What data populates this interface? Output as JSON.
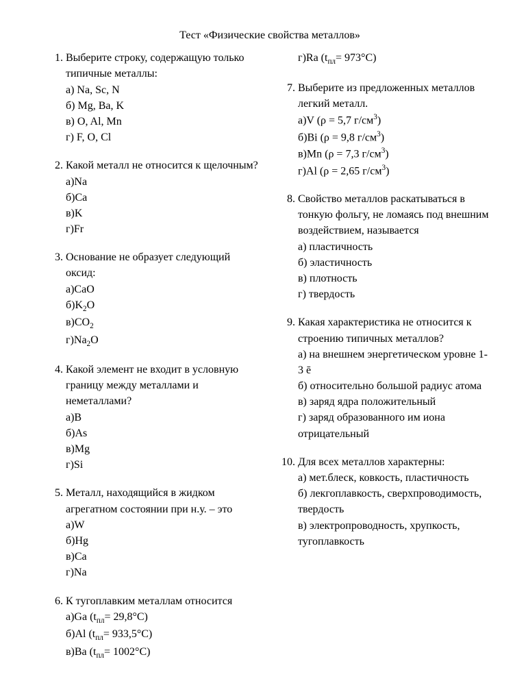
{
  "title": "Тест «Физические свойства металлов»",
  "questions": [
    {
      "num": "1",
      "text": "Выберите строку, содержащую только типичные металлы:",
      "options": [
        "а) Na, Sc, N",
        "б) Mg, Ba, K",
        "в) O, Al, Mn",
        "г) F, O, Cl"
      ]
    },
    {
      "num": "2",
      "text": "Какой металл не относится к щелочным?",
      "options": [
        "а)Na",
        "б)Ca",
        "в)K",
        "г)Fr"
      ]
    },
    {
      "num": "3",
      "text": "Основание не образует следующий оксид:",
      "options": [
        "а)CaO",
        "б)K<sub>2</sub>O",
        "в)CO<sub>2</sub>",
        "г)Na<sub>2</sub>O"
      ]
    },
    {
      "num": "4",
      "text": "Какой элемент не входит в условную границу между металлами и неметаллами?",
      "options": [
        "а)B",
        "б)As",
        "в)Mg",
        "г)Si"
      ]
    },
    {
      "num": "5",
      "text": "Металл, находящийся в жидком агрегатном состоянии при н.у. – это",
      "options": [
        "а)W",
        "б)Hg",
        "в)Ca",
        "г)Na"
      ]
    },
    {
      "num": "6",
      "text": "К тугоплавким металлам относится",
      "options": [
        "а)Ga (t<sub>пл</sub>= 29,8°С)",
        "б)Al (t<sub>пл</sub>= 933,5°С)",
        "в)Ba (t<sub>пл</sub>= 1002°С)",
        "г)Ra (t<sub>пл</sub>= 973°С)"
      ],
      "allowBreak": true
    },
    {
      "num": "7",
      "text": "Выберите из предложенных металлов легкий металл.",
      "options": [
        "а)V (ρ = 5,7 г/см<sup>3</sup>)",
        "б)Bi (ρ = 9,8 г/см<sup>3</sup>)",
        "в)Mn (ρ = 7,3 г/см<sup>3</sup>)",
        "г)Al (ρ = 2,65 г/см<sup>3</sup>)"
      ]
    },
    {
      "num": "8",
      "text": "Свойство металлов раскатываться в тонкую фольгу, не ломаясь под внешним воздействием, называется",
      "options": [
        "а) пластичность",
        "б) эластичность",
        "в) плотность",
        "г) твердость"
      ]
    },
    {
      "num": "9",
      "text": "Какая характеристика не относится к строению типичных металлов?",
      "options": [
        "а) на внешнем энергетическом уровне 1-3 ē",
        "б) относительно большой радиус атома",
        "в) заряд ядра положительный",
        "г) заряд образованного им иона отрицательный"
      ]
    },
    {
      "num": "10",
      "text": "Для всех металлов характерны:",
      "options": [
        "а) мет.блеск, ковкость, пластичность",
        "б) лекгоплавкость, сверхпроводимость, твердость",
        "в) электропроводность, хрупкость, тугоплавкость"
      ]
    }
  ]
}
